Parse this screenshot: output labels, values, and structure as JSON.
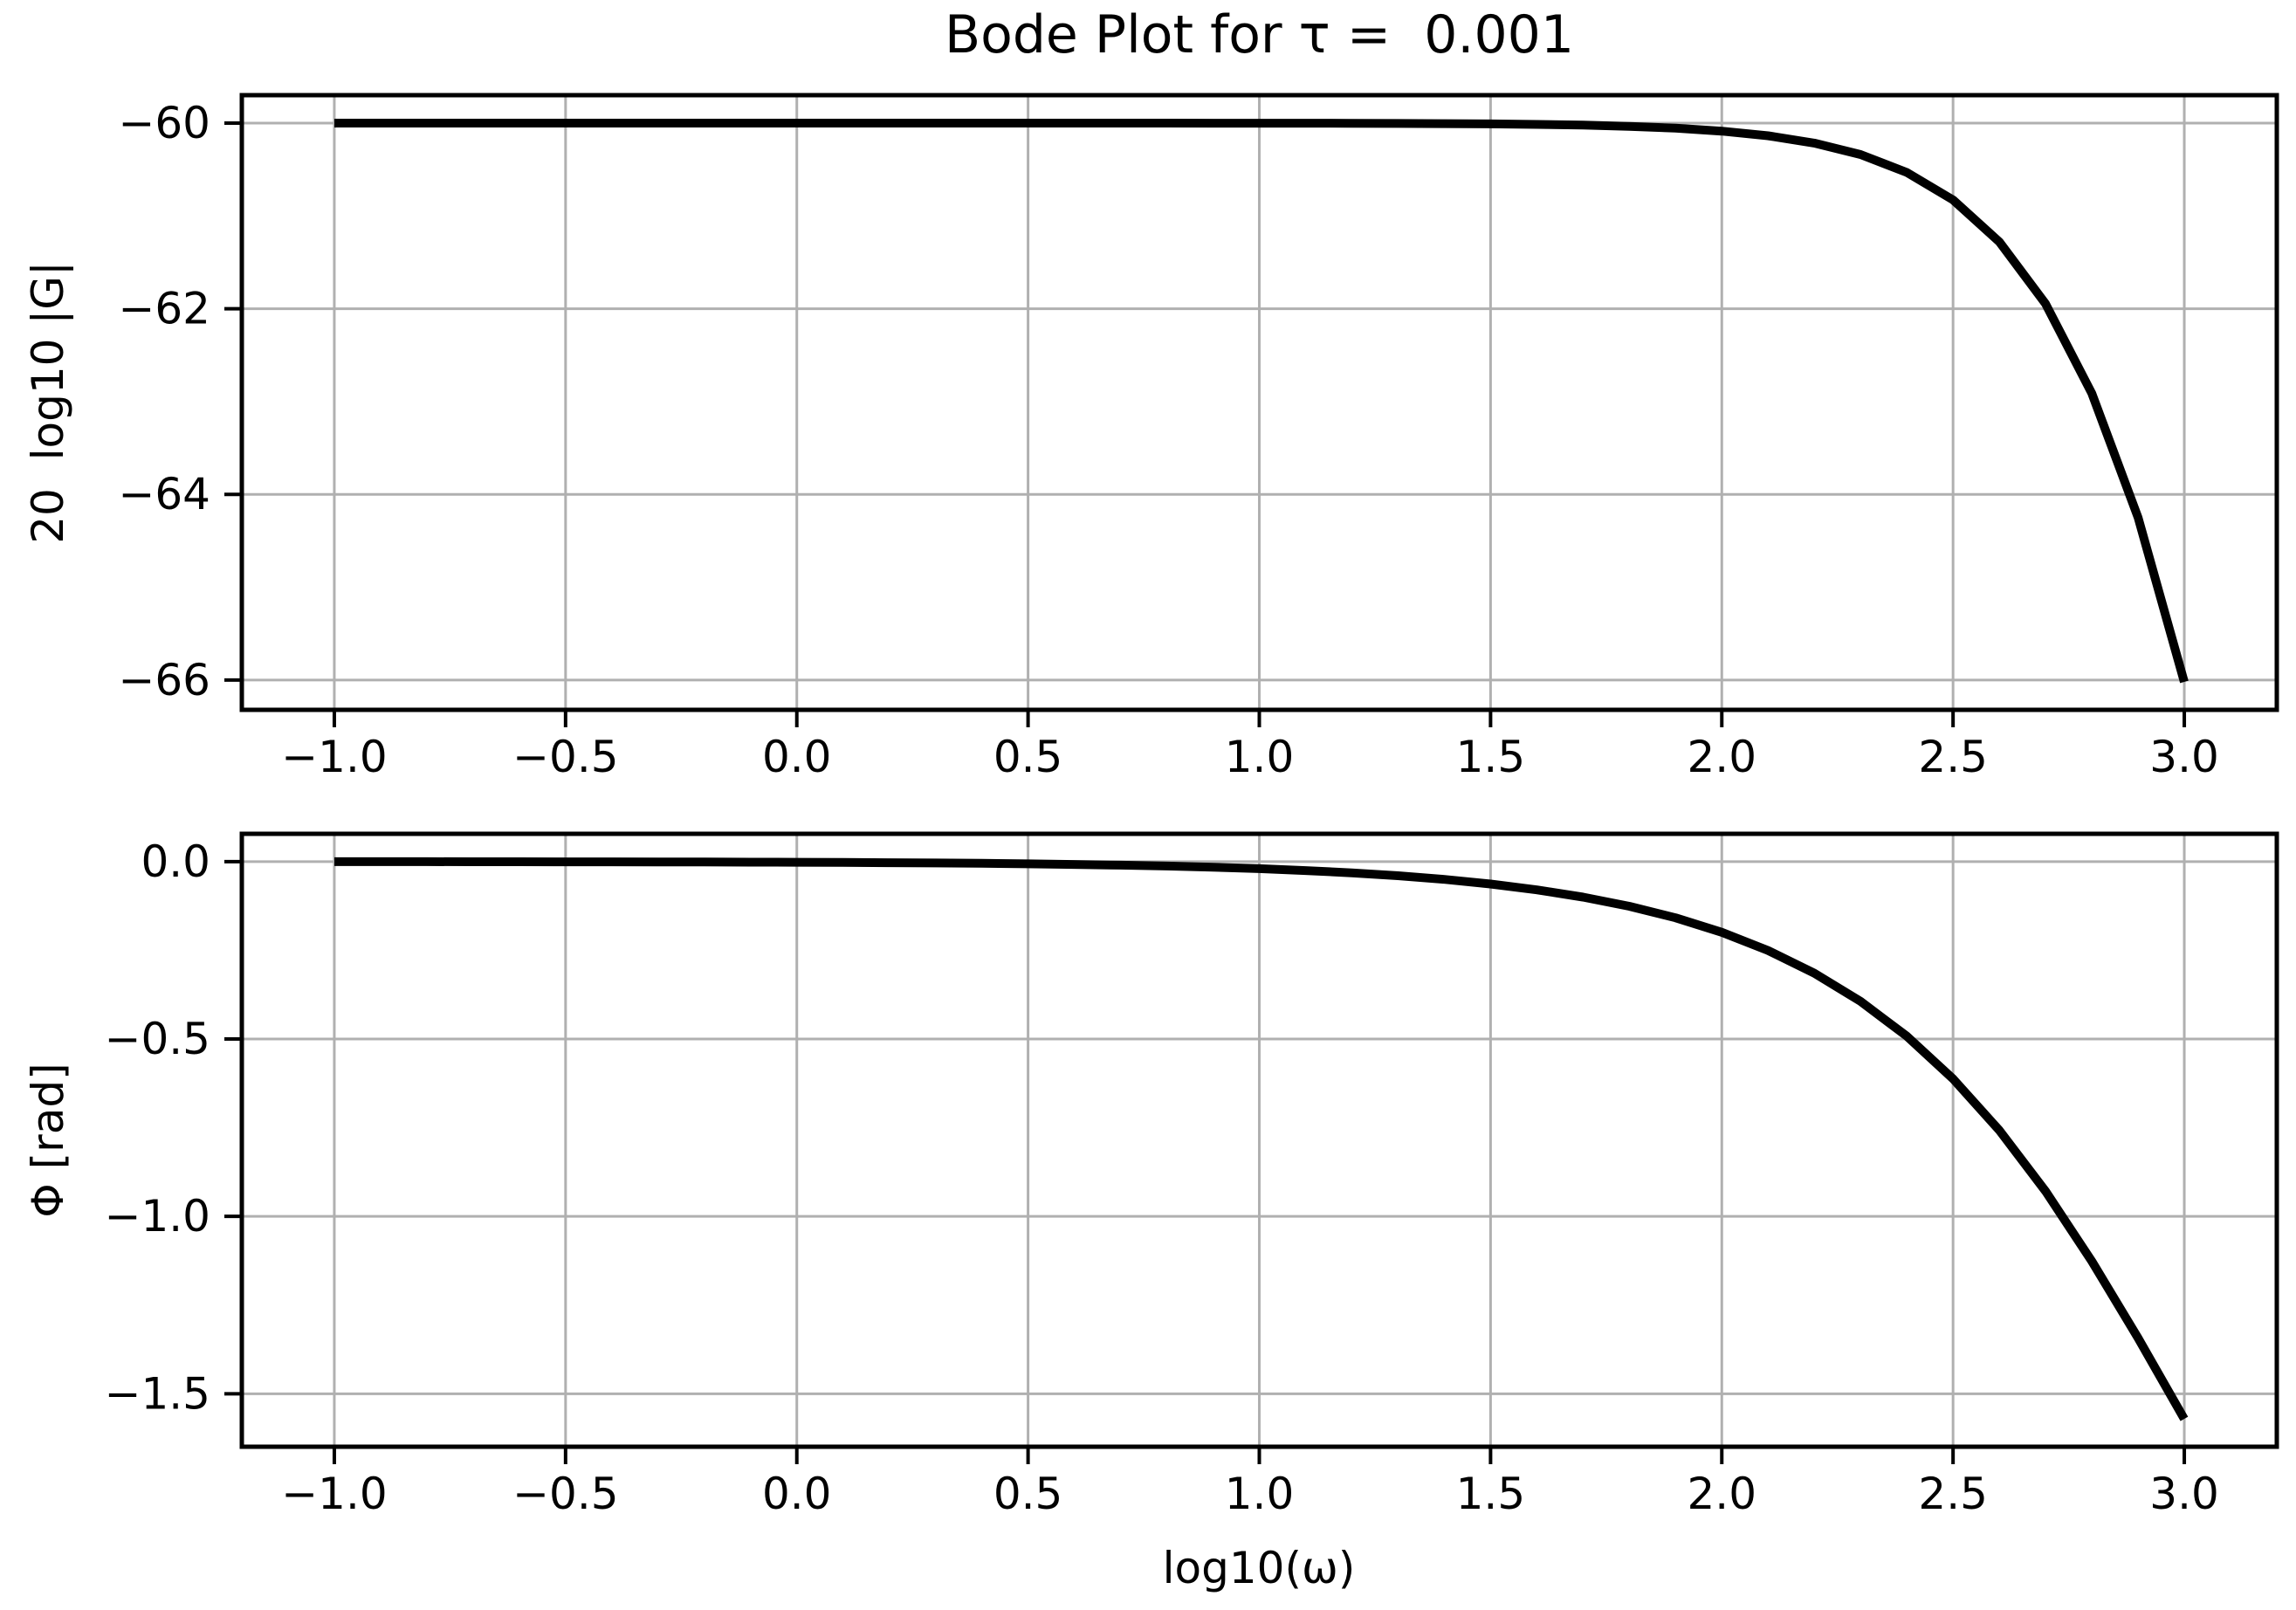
{
  "title": "Bode Plot for τ =  0.001",
  "figure": {
    "background": "#ffffff",
    "grid_color": "#b0b0b0",
    "line_color": "#000000",
    "spine_color": "#000000",
    "text_color": "#000000"
  },
  "chart_data": [
    {
      "type": "line",
      "name": "magnitude",
      "ylabel": "20  log10 |G|",
      "xlabel": "",
      "grid": true,
      "legend": "none",
      "line_color": "#000000",
      "xlim": [
        -1.2,
        3.2
      ],
      "ylim": [
        -66.3216,
        -59.699
      ],
      "xticks": [
        -1.0,
        -0.5,
        0.0,
        0.5,
        1.0,
        1.5,
        2.0,
        2.5,
        3.0
      ],
      "xtick_labels": [
        "−1.0",
        "−0.5",
        "0.0",
        "0.5",
        "1.0",
        "1.5",
        "2.0",
        "2.5",
        "3.0"
      ],
      "yticks": [
        -60,
        -62,
        -64,
        -66
      ],
      "ytick_labels": [
        "−60",
        "−62",
        "−64",
        "−66"
      ],
      "x": [
        -1.0,
        -0.9,
        -0.8,
        -0.7,
        -0.6,
        -0.5,
        -0.4,
        -0.3,
        -0.2,
        -0.1,
        0.0,
        0.1,
        0.2,
        0.3,
        0.4,
        0.5,
        0.6,
        0.7,
        0.8,
        0.9,
        1.0,
        1.1,
        1.2,
        1.3,
        1.4,
        1.5,
        1.6,
        1.7,
        1.8,
        1.9,
        2.0,
        2.1,
        2.2,
        2.3,
        2.4,
        2.5,
        2.6,
        2.7,
        2.8,
        2.9,
        3.0
      ],
      "y": [
        -60.0,
        -60.0,
        -60.0,
        -60.0,
        -60.0,
        -60.0,
        -60.0,
        -60.0,
        -60.0,
        -60.0,
        -60.0,
        -60.0,
        -60.0,
        -60.0,
        -60.0001,
        -60.0001,
        -60.0001,
        -60.0002,
        -60.0003,
        -60.0005,
        -60.0009,
        -60.0014,
        -60.0022,
        -60.0035,
        -60.0055,
        -60.0087,
        -60.0138,
        -60.0218,
        -60.0345,
        -60.0546,
        -60.0864,
        -60.1366,
        -60.2155,
        -60.3391,
        -60.5314,
        -60.8279,
        -61.278,
        -61.9465,
        -62.9111,
        -64.2493,
        -66.0206
      ]
    },
    {
      "type": "line",
      "name": "phase",
      "ylabel": "Φ [rad]",
      "xlabel": "log10(ω)",
      "grid": true,
      "legend": "none",
      "line_color": "#000000",
      "xlim": [
        -1.2,
        3.2
      ],
      "ylim": [
        -1.6493,
        0.0783
      ],
      "xticks": [
        -1.0,
        -0.5,
        0.0,
        0.5,
        1.0,
        1.5,
        2.0,
        2.5,
        3.0
      ],
      "xtick_labels": [
        "−1.0",
        "−0.5",
        "0.0",
        "0.5",
        "1.0",
        "1.5",
        "2.0",
        "2.5",
        "3.0"
      ],
      "yticks": [
        0.0,
        -0.5,
        -1.0,
        -1.5
      ],
      "ytick_labels": [
        "0.0",
        "−0.5",
        "−1.0",
        "−1.5"
      ],
      "x": [
        -1.0,
        -0.9,
        -0.8,
        -0.7,
        -0.6,
        -0.5,
        -0.4,
        -0.3,
        -0.2,
        -0.1,
        0.0,
        0.1,
        0.2,
        0.3,
        0.4,
        0.5,
        0.6,
        0.7,
        0.8,
        0.9,
        1.0,
        1.1,
        1.2,
        1.3,
        1.4,
        1.5,
        1.6,
        1.7,
        1.8,
        1.9,
        2.0,
        2.1,
        2.2,
        2.3,
        2.4,
        2.5,
        2.6,
        2.7,
        2.8,
        2.9,
        3.0
      ],
      "y": [
        -0.0002,
        -0.0003,
        -0.0003,
        -0.0004,
        -0.0005,
        -0.0006,
        -0.0008,
        -0.001,
        -0.0013,
        -0.0016,
        -0.002,
        -0.0025,
        -0.0032,
        -0.004,
        -0.005,
        -0.0063,
        -0.008,
        -0.01,
        -0.0126,
        -0.0159,
        -0.02,
        -0.0252,
        -0.0317,
        -0.0399,
        -0.0502,
        -0.0632,
        -0.0796,
        -0.1002,
        -0.126,
        -0.1585,
        -0.1993,
        -0.2505,
        -0.3144,
        -0.3939,
        -0.4921,
        -0.6124,
        -0.7573,
        -0.929,
        -1.1263,
        -1.3429,
        -1.5708
      ]
    }
  ]
}
